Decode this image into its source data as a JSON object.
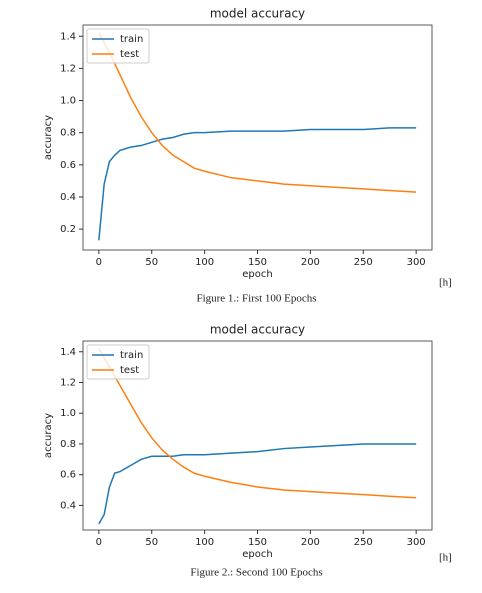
{
  "chart_data": [
    {
      "type": "line",
      "title": "model accuracy",
      "x_label": "epoch",
      "y_label": "accuracy",
      "caption": "Figure 1.: First 100 Epochs",
      "note": "[h]",
      "x": [
        0,
        5,
        10,
        15,
        20,
        25,
        30,
        40,
        50,
        60,
        70,
        80,
        90,
        100,
        125,
        150,
        175,
        200,
        225,
        250,
        275,
        300
      ],
      "series": [
        {
          "name": "train",
          "color": "#1f77b4",
          "values": [
            0.13,
            0.48,
            0.62,
            0.66,
            0.69,
            0.7,
            0.71,
            0.72,
            0.74,
            0.76,
            0.77,
            0.79,
            0.8,
            0.8,
            0.81,
            0.81,
            0.81,
            0.82,
            0.82,
            0.82,
            0.83,
            0.83
          ]
        },
        {
          "name": "test",
          "color": "#ff7f0e",
          "values": [
            1.42,
            1.36,
            1.3,
            1.23,
            1.16,
            1.09,
            1.02,
            0.9,
            0.8,
            0.72,
            0.66,
            0.62,
            0.58,
            0.56,
            0.52,
            0.5,
            0.48,
            0.47,
            0.46,
            0.45,
            0.44,
            0.43
          ]
        }
      ],
      "xlim": [
        -15,
        315
      ],
      "xticks": [
        0,
        50,
        100,
        150,
        200,
        250,
        300
      ],
      "ylim": [
        0.07,
        1.47
      ],
      "yticks": [
        0.2,
        0.4,
        0.6,
        0.8,
        {
          "value": 1,
          "label": "1.0"
        },
        1.2,
        1.4
      ],
      "legend": "upper left"
    },
    {
      "type": "line",
      "title": "model accuracy",
      "x_label": "epoch",
      "y_label": "accuracy",
      "caption": "Figure 2.: Second 100 Epochs",
      "note": "[h]",
      "x": [
        0,
        5,
        10,
        15,
        20,
        25,
        30,
        40,
        50,
        60,
        70,
        80,
        90,
        100,
        125,
        150,
        175,
        200,
        225,
        250,
        275,
        300
      ],
      "series": [
        {
          "name": "train",
          "color": "#1f77b4",
          "values": [
            0.28,
            0.34,
            0.52,
            0.61,
            0.62,
            0.64,
            0.66,
            0.7,
            0.72,
            0.72,
            0.72,
            0.73,
            0.73,
            0.73,
            0.74,
            0.75,
            0.77,
            0.78,
            0.79,
            0.8,
            0.8,
            0.8
          ]
        },
        {
          "name": "test",
          "color": "#ff7f0e",
          "values": [
            1.42,
            1.36,
            1.3,
            1.24,
            1.18,
            1.12,
            1.06,
            0.94,
            0.84,
            0.76,
            0.7,
            0.65,
            0.61,
            0.59,
            0.55,
            0.52,
            0.5,
            0.49,
            0.48,
            0.47,
            0.46,
            0.45
          ]
        }
      ],
      "xlim": [
        -15,
        315
      ],
      "xticks": [
        0,
        50,
        100,
        150,
        200,
        250,
        300
      ],
      "ylim": [
        0.24,
        1.47
      ],
      "yticks": [
        0.4,
        0.6,
        0.8,
        {
          "value": 1,
          "label": "1.0"
        },
        1.2,
        1.4
      ],
      "legend": "upper left"
    }
  ]
}
